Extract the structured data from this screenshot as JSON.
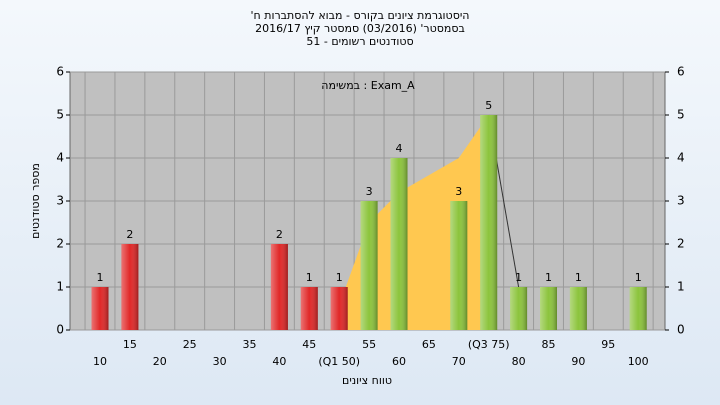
{
  "chart_data": {
    "type": "bar",
    "title": [
      "'היסטוגרמת ציונים בקורס - מבוא להסתברות ח",
      "בסמסטר' (03/2016) סמסטר קיץ 2016/17",
      "סטודנטים רשומים - 51"
    ],
    "annotation": "במשימה : Exam_A",
    "x_label": "טווח ציונים",
    "y_label": "מספר סטודנטים",
    "categories": [
      "10",
      "15",
      "20",
      "25",
      "30",
      "35",
      "40",
      "45",
      "(Q1 50)",
      "55",
      "60",
      "65",
      "70",
      "(Q3 75)",
      "80",
      "85",
      "90",
      "95",
      "100"
    ],
    "values": [
      1,
      2,
      0,
      0,
      0,
      0,
      2,
      1,
      1,
      3,
      4,
      0,
      3,
      5,
      1,
      1,
      1,
      0,
      1
    ],
    "colors": [
      "#e02828",
      "#e02828",
      "#e02828",
      "#e02828",
      "#e02828",
      "#e02828",
      "#e02828",
      "#e02828",
      "#e02828",
      "#8cc43c",
      "#8cc43c",
      "#8cc43c",
      "#8cc43c",
      "#8cc43c",
      "#8cc43c",
      "#8cc43c",
      "#8cc43c",
      "#8cc43c",
      "#8cc43c"
    ],
    "area": {
      "x": [
        48.5,
        55,
        60,
        70,
        75,
        75
      ],
      "y": [
        0,
        2.5,
        3.2,
        4,
        5,
        0
      ],
      "color": "#ffc850"
    },
    "trend": {
      "x": [
        75,
        80
      ],
      "y": [
        5,
        1
      ],
      "color": "#333333"
    },
    "ylim": [
      0,
      6
    ],
    "yticks": [
      0,
      1,
      2,
      3,
      4,
      5,
      6
    ],
    "y2lim": [
      0,
      6
    ],
    "y2ticks": [
      0,
      1,
      2,
      3,
      4,
      5,
      6
    ],
    "grid": true
  }
}
